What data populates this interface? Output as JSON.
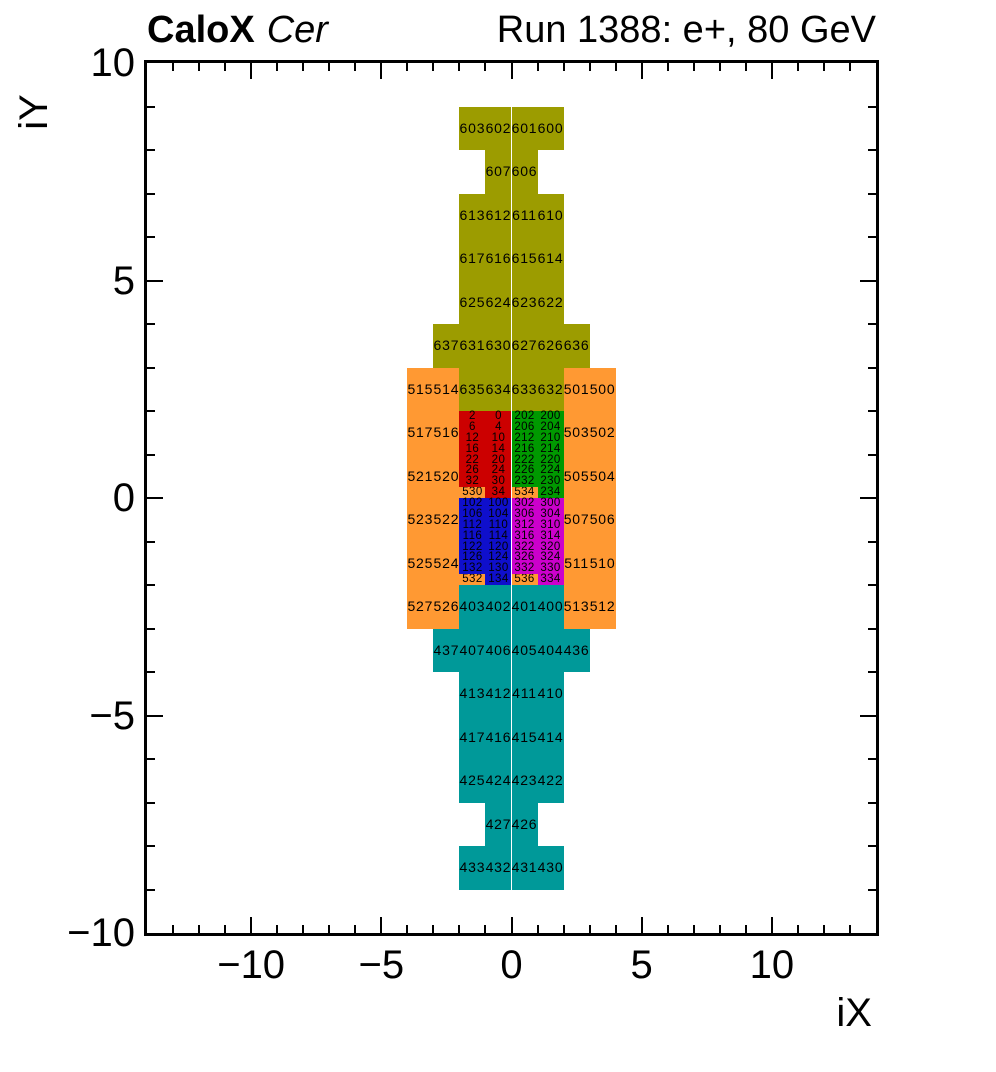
{
  "header": {
    "title_left_bold": "CaloX",
    "title_left_italic": "Cer",
    "title_right": "Run 1388: e+, 80 GeV"
  },
  "chart_data": {
    "type": "heatmap",
    "title": "CaloX Cer — Run 1388: e+, 80 GeV",
    "xlabel": "iX",
    "ylabel": "iY",
    "xlim": [
      -14,
      14
    ],
    "ylim": [
      -10,
      10
    ],
    "x_ticks": [
      -10,
      -5,
      0,
      5,
      10
    ],
    "x_tick_labels": [
      "−10",
      "−5",
      "0",
      "5",
      "10"
    ],
    "y_ticks": [
      10,
      5,
      0,
      -5,
      -10
    ],
    "y_tick_labels": [
      "10",
      "5",
      "0",
      "−5",
      "−10"
    ],
    "minor_tick_step": 1,
    "grid": false,
    "colors": {
      "olive": "#9C9C00",
      "orange": "#FF9933",
      "red": "#CC0000",
      "green": "#009900",
      "blue": "#0F0FCC",
      "magenta": "#CC00CC",
      "teal": "#009999"
    },
    "cells": [
      [
        "603",
        -2,
        8,
        1,
        "olive"
      ],
      [
        "602",
        -1,
        8,
        1,
        "olive"
      ],
      [
        "601",
        0,
        8,
        1,
        "olive"
      ],
      [
        "600",
        1,
        8,
        1,
        "olive"
      ],
      [
        "607",
        -1,
        7,
        1,
        "olive"
      ],
      [
        "606",
        0,
        7,
        1,
        "olive"
      ],
      [
        "613",
        -2,
        6,
        1,
        "olive"
      ],
      [
        "612",
        -1,
        6,
        1,
        "olive"
      ],
      [
        "611",
        0,
        6,
        1,
        "olive"
      ],
      [
        "610",
        1,
        6,
        1,
        "olive"
      ],
      [
        "617",
        -2,
        5,
        1,
        "olive"
      ],
      [
        "616",
        -1,
        5,
        1,
        "olive"
      ],
      [
        "615",
        0,
        5,
        1,
        "olive"
      ],
      [
        "614",
        1,
        5,
        1,
        "olive"
      ],
      [
        "625",
        -2,
        4,
        1,
        "olive"
      ],
      [
        "624",
        -1,
        4,
        1,
        "olive"
      ],
      [
        "623",
        0,
        4,
        1,
        "olive"
      ],
      [
        "622",
        1,
        4,
        1,
        "olive"
      ],
      [
        "637",
        -3,
        3,
        1,
        "olive"
      ],
      [
        "631",
        -2,
        3,
        1,
        "olive"
      ],
      [
        "630",
        -1,
        3,
        1,
        "olive"
      ],
      [
        "627",
        0,
        3,
        1,
        "olive"
      ],
      [
        "626",
        1,
        3,
        1,
        "olive"
      ],
      [
        "636",
        2,
        3,
        1,
        "olive"
      ],
      [
        "635",
        -2,
        2,
        1,
        "olive"
      ],
      [
        "634",
        -1,
        2,
        1,
        "olive"
      ],
      [
        "633",
        0,
        2,
        1,
        "olive"
      ],
      [
        "632",
        1,
        2,
        1,
        "olive"
      ],
      [
        "515",
        -4,
        2,
        1,
        "orange"
      ],
      [
        "514",
        -3,
        2,
        1,
        "orange"
      ],
      [
        "501",
        2,
        2,
        1,
        "orange"
      ],
      [
        "500",
        3,
        2,
        1,
        "orange"
      ],
      [
        "517",
        -4,
        1,
        1,
        "orange"
      ],
      [
        "516",
        -3,
        1,
        1,
        "orange"
      ],
      [
        "503",
        2,
        1,
        1,
        "orange"
      ],
      [
        "502",
        3,
        1,
        1,
        "orange"
      ],
      [
        "521",
        -4,
        0,
        1,
        "orange"
      ],
      [
        "520",
        -3,
        0,
        1,
        "orange"
      ],
      [
        "505",
        2,
        0,
        1,
        "orange"
      ],
      [
        "504",
        3,
        0,
        1,
        "orange"
      ],
      [
        "523",
        -4,
        -1,
        1,
        "orange"
      ],
      [
        "522",
        -3,
        -1,
        1,
        "orange"
      ],
      [
        "507",
        2,
        -1,
        1,
        "orange"
      ],
      [
        "506",
        3,
        -1,
        1,
        "orange"
      ],
      [
        "525",
        -4,
        -2,
        1,
        "orange"
      ],
      [
        "524",
        -3,
        -2,
        1,
        "orange"
      ],
      [
        "511",
        2,
        -2,
        1,
        "orange"
      ],
      [
        "510",
        3,
        -2,
        1,
        "orange"
      ],
      [
        "527",
        -4,
        -3,
        1,
        "orange"
      ],
      [
        "526",
        -3,
        -3,
        1,
        "orange"
      ],
      [
        "513",
        2,
        -3,
        1,
        "orange"
      ],
      [
        "512",
        3,
        -3,
        1,
        "orange"
      ],
      [
        "530",
        -2,
        0,
        0.25,
        "orange"
      ],
      [
        "534",
        0,
        0,
        0.25,
        "orange"
      ],
      [
        "532",
        -2,
        -2,
        0.25,
        "orange"
      ],
      [
        "536",
        0,
        -2,
        0.25,
        "orange"
      ],
      [
        "2",
        -2,
        1.75,
        0.25,
        "red"
      ],
      [
        "0",
        -1,
        1.75,
        0.25,
        "red"
      ],
      [
        "6",
        -2,
        1.5,
        0.25,
        "red"
      ],
      [
        "4",
        -1,
        1.5,
        0.25,
        "red"
      ],
      [
        "12",
        -2,
        1.25,
        0.25,
        "red"
      ],
      [
        "10",
        -1,
        1.25,
        0.25,
        "red"
      ],
      [
        "16",
        -2,
        1,
        0.25,
        "red"
      ],
      [
        "14",
        -1,
        1,
        0.25,
        "red"
      ],
      [
        "22",
        -2,
        0.75,
        0.25,
        "red"
      ],
      [
        "20",
        -1,
        0.75,
        0.25,
        "red"
      ],
      [
        "26",
        -2,
        0.5,
        0.25,
        "red"
      ],
      [
        "24",
        -1,
        0.5,
        0.25,
        "red"
      ],
      [
        "32",
        -2,
        0.25,
        0.25,
        "red"
      ],
      [
        "30",
        -1,
        0.25,
        0.25,
        "red"
      ],
      [
        "34",
        -1,
        0,
        0.25,
        "red"
      ],
      [
        "202",
        0,
        1.75,
        0.25,
        "green"
      ],
      [
        "200",
        1,
        1.75,
        0.25,
        "green"
      ],
      [
        "206",
        0,
        1.5,
        0.25,
        "green"
      ],
      [
        "204",
        1,
        1.5,
        0.25,
        "green"
      ],
      [
        "212",
        0,
        1.25,
        0.25,
        "green"
      ],
      [
        "210",
        1,
        1.25,
        0.25,
        "green"
      ],
      [
        "216",
        0,
        1,
        0.25,
        "green"
      ],
      [
        "214",
        1,
        1,
        0.25,
        "green"
      ],
      [
        "222",
        0,
        0.75,
        0.25,
        "green"
      ],
      [
        "220",
        1,
        0.75,
        0.25,
        "green"
      ],
      [
        "226",
        0,
        0.5,
        0.25,
        "green"
      ],
      [
        "224",
        1,
        0.5,
        0.25,
        "green"
      ],
      [
        "232",
        0,
        0.25,
        0.25,
        "green"
      ],
      [
        "230",
        1,
        0.25,
        0.25,
        "green"
      ],
      [
        "234",
        1,
        0,
        0.25,
        "green"
      ],
      [
        "102",
        -2,
        -0.25,
        0.25,
        "blue"
      ],
      [
        "100",
        -1,
        -0.25,
        0.25,
        "blue"
      ],
      [
        "106",
        -2,
        -0.5,
        0.25,
        "blue"
      ],
      [
        "104",
        -1,
        -0.5,
        0.25,
        "blue"
      ],
      [
        "112",
        -2,
        -0.75,
        0.25,
        "blue"
      ],
      [
        "110",
        -1,
        -0.75,
        0.25,
        "blue"
      ],
      [
        "116",
        -2,
        -1,
        0.25,
        "blue"
      ],
      [
        "114",
        -1,
        -1,
        0.25,
        "blue"
      ],
      [
        "122",
        -2,
        -1.25,
        0.25,
        "blue"
      ],
      [
        "120",
        -1,
        -1.25,
        0.25,
        "blue"
      ],
      [
        "126",
        -2,
        -1.5,
        0.25,
        "blue"
      ],
      [
        "124",
        -1,
        -1.5,
        0.25,
        "blue"
      ],
      [
        "132",
        -2,
        -1.75,
        0.25,
        "blue"
      ],
      [
        "130",
        -1,
        -1.75,
        0.25,
        "blue"
      ],
      [
        "134",
        -1,
        -2,
        0.25,
        "blue"
      ],
      [
        "302",
        0,
        -0.25,
        0.25,
        "magenta"
      ],
      [
        "300",
        1,
        -0.25,
        0.25,
        "magenta"
      ],
      [
        "306",
        0,
        -0.5,
        0.25,
        "magenta"
      ],
      [
        "304",
        1,
        -0.5,
        0.25,
        "magenta"
      ],
      [
        "312",
        0,
        -0.75,
        0.25,
        "magenta"
      ],
      [
        "310",
        1,
        -0.75,
        0.25,
        "magenta"
      ],
      [
        "316",
        0,
        -1,
        0.25,
        "magenta"
      ],
      [
        "314",
        1,
        -1,
        0.25,
        "magenta"
      ],
      [
        "322",
        0,
        -1.25,
        0.25,
        "magenta"
      ],
      [
        "320",
        1,
        -1.25,
        0.25,
        "magenta"
      ],
      [
        "326",
        0,
        -1.5,
        0.25,
        "magenta"
      ],
      [
        "324",
        1,
        -1.5,
        0.25,
        "magenta"
      ],
      [
        "332",
        0,
        -1.75,
        0.25,
        "magenta"
      ],
      [
        "330",
        1,
        -1.75,
        0.25,
        "magenta"
      ],
      [
        "334",
        1,
        -2,
        0.25,
        "magenta"
      ],
      [
        "403",
        -2,
        -3,
        1,
        "teal"
      ],
      [
        "402",
        -1,
        -3,
        1,
        "teal"
      ],
      [
        "401",
        0,
        -3,
        1,
        "teal"
      ],
      [
        "400",
        1,
        -3,
        1,
        "teal"
      ],
      [
        "437",
        -3,
        -4,
        1,
        "teal"
      ],
      [
        "407",
        -2,
        -4,
        1,
        "teal"
      ],
      [
        "406",
        -1,
        -4,
        1,
        "teal"
      ],
      [
        "405",
        0,
        -4,
        1,
        "teal"
      ],
      [
        "404",
        1,
        -4,
        1,
        "teal"
      ],
      [
        "436",
        2,
        -4,
        1,
        "teal"
      ],
      [
        "413",
        -2,
        -5,
        1,
        "teal"
      ],
      [
        "412",
        -1,
        -5,
        1,
        "teal"
      ],
      [
        "411",
        0,
        -5,
        1,
        "teal"
      ],
      [
        "410",
        1,
        -5,
        1,
        "teal"
      ],
      [
        "417",
        -2,
        -6,
        1,
        "teal"
      ],
      [
        "416",
        -1,
        -6,
        1,
        "teal"
      ],
      [
        "415",
        0,
        -6,
        1,
        "teal"
      ],
      [
        "414",
        1,
        -6,
        1,
        "teal"
      ],
      [
        "425",
        -2,
        -7,
        1,
        "teal"
      ],
      [
        "424",
        -1,
        -7,
        1,
        "teal"
      ],
      [
        "423",
        0,
        -7,
        1,
        "teal"
      ],
      [
        "422",
        1,
        -7,
        1,
        "teal"
      ],
      [
        "427",
        -1,
        -8,
        1,
        "teal"
      ],
      [
        "426",
        0,
        -8,
        1,
        "teal"
      ],
      [
        "433",
        -2,
        -9,
        1,
        "teal"
      ],
      [
        "432",
        -1,
        -9,
        1,
        "teal"
      ],
      [
        "431",
        0,
        -9,
        1,
        "teal"
      ],
      [
        "430",
        1,
        -9,
        1,
        "teal"
      ]
    ]
  }
}
